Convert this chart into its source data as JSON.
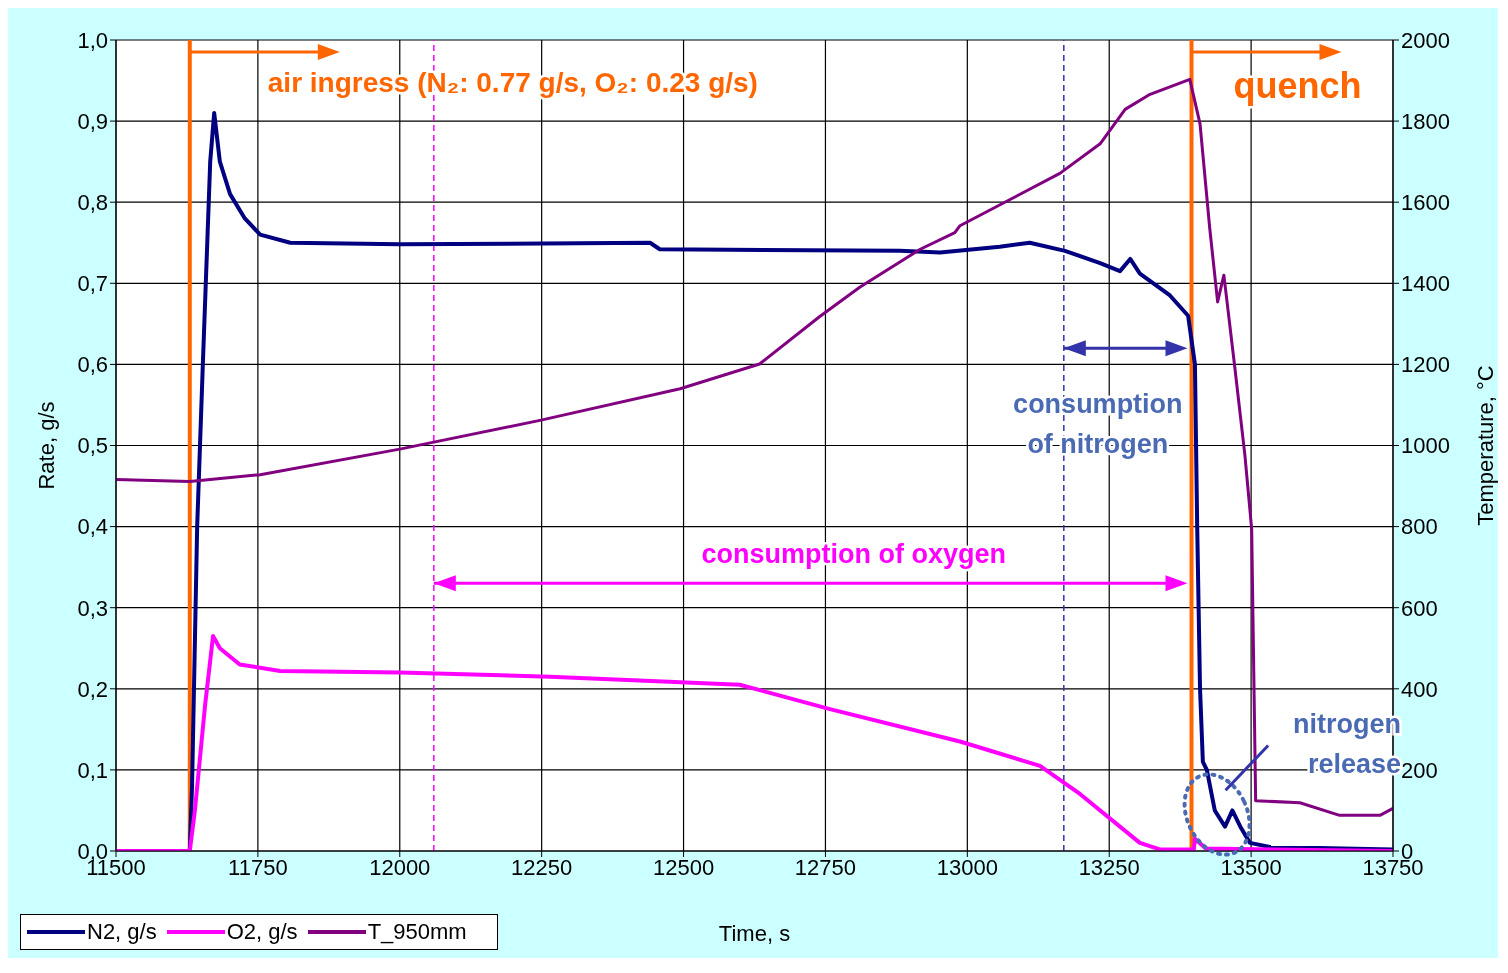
{
  "chart_data": {
    "type": "line",
    "xlabel": "Time, s",
    "ylabel": "Rate, g/s",
    "y2label": "Temperature, °C",
    "xlim": [
      11500,
      13750
    ],
    "xticks": [
      11500,
      11750,
      12000,
      12250,
      12500,
      12750,
      13000,
      13250,
      13500,
      13750
    ],
    "ylim": [
      0,
      1
    ],
    "yticks": [
      {
        "value": 0,
        "label": "0,0"
      },
      {
        "value": 0.1,
        "label": "0,1"
      },
      {
        "value": 0.2,
        "label": "0,2"
      },
      {
        "value": 0.3,
        "label": "0,3"
      },
      {
        "value": 0.4,
        "label": "0,4"
      },
      {
        "value": 0.5,
        "label": "0,5"
      },
      {
        "value": 0.6,
        "label": "0,6"
      },
      {
        "value": 0.7,
        "label": "0,7"
      },
      {
        "value": 0.8,
        "label": "0,8"
      },
      {
        "value": 0.9,
        "label": "0,9"
      },
      {
        "value": 1,
        "label": "1,0"
      }
    ],
    "y2lim": [
      0,
      2000
    ],
    "y2ticks": [
      0,
      200,
      400,
      600,
      800,
      1000,
      1200,
      1400,
      1600,
      1800,
      2000
    ],
    "grid": true,
    "legend": "bottom left",
    "marker": "none",
    "line_style": "solid",
    "series": [
      {
        "name": "N2, g/s",
        "color": "#000080",
        "x": [
          11500,
          11630,
          11634,
          11643,
          11653,
          11666,
          11673,
          11683,
          11701,
          11727,
          11754,
          11807,
          12000,
          12441,
          12458,
          12881,
          12952,
          13057,
          13110,
          13172,
          13234,
          13269,
          13287,
          13304,
          13357,
          13389,
          13401,
          13405,
          13410,
          13415,
          13422,
          13436,
          13454,
          13467,
          13481,
          13498,
          13533,
          13750
        ],
        "values": [
          0,
          0,
          0.08,
          0.4,
          0.6,
          0.85,
          0.91,
          0.85,
          0.81,
          0.78,
          0.76,
          0.75,
          0.748,
          0.75,
          0.742,
          0.74,
          0.738,
          0.745,
          0.75,
          0.74,
          0.725,
          0.715,
          0.73,
          0.712,
          0.685,
          0.66,
          0.6,
          0.4,
          0.2,
          0.11,
          0.1,
          0.05,
          0.03,
          0.05,
          0.03,
          0.01,
          0.005,
          0.002
        ]
      },
      {
        "name": "O2, g/s",
        "color": "#ff00ff",
        "x": [
          11500,
          11630,
          11639,
          11657,
          11671,
          11683,
          11718,
          11789,
          12000,
          12265,
          12599,
          12758,
          12987,
          13128,
          13199,
          13304,
          13339,
          13399,
          13401,
          13420,
          13750
        ],
        "values": [
          0,
          0,
          0.05,
          0.18,
          0.265,
          0.25,
          0.23,
          0.222,
          0.22,
          0.215,
          0.205,
          0.175,
          0.135,
          0.105,
          0.07,
          0.01,
          0.002,
          0.002,
          0.015,
          0.003,
          0
        ]
      },
      {
        "name": "T_950mm",
        "color": "#800080",
        "axis": "y2",
        "x": [
          11500,
          11630,
          11754,
          12000,
          12247,
          12494,
          12634,
          12740,
          12811,
          12917,
          12978,
          12987,
          13163,
          13234,
          13278,
          13322,
          13392,
          13410,
          13427,
          13441,
          13452,
          13471,
          13489,
          13501,
          13508,
          13586,
          13656,
          13727,
          13750
        ],
        "values": [
          916,
          911,
          928,
          991,
          1062,
          1140,
          1201,
          1318,
          1391,
          1484,
          1525,
          1542,
          1671,
          1744,
          1829,
          1866,
          1903,
          1793,
          1537,
          1354,
          1420,
          1196,
          977,
          794,
          124,
          119,
          88,
          88,
          105
        ]
      }
    ],
    "ref_lines": [
      {
        "axis": "x",
        "value": 11630,
        "color": "#ff6600",
        "line_style": "solid"
      },
      {
        "axis": "x",
        "value": 13395,
        "color": "#ff6600",
        "line_style": "solid"
      },
      {
        "axis": "x",
        "value": 12060,
        "color": "#ff00ff",
        "line_style": "dashed"
      },
      {
        "axis": "x",
        "value": 13170,
        "color": "#3333aa",
        "line_style": "dashed"
      }
    ],
    "annotations": [
      {
        "text": "air ingress (N₂: 0.77 g/s, O₂: 0.23 g/s)",
        "x": 11630,
        "y": 1
      },
      {
        "text": "quench",
        "x": 13395,
        "y": 1
      },
      "consumption of oxygen",
      "consumption of nitrogen",
      "nitrogen release"
    ]
  }
}
